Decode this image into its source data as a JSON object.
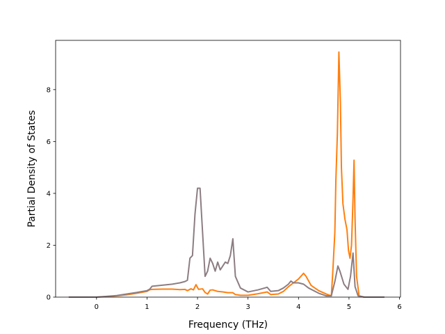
{
  "chart_data": {
    "type": "line",
    "title": "",
    "xlabel": "Frequency (THz)",
    "ylabel": "Partial Density of States",
    "xlim": [
      -0.81,
      6.02
    ],
    "ylim": [
      0,
      9.9
    ],
    "xticks": [
      0,
      1,
      2,
      3,
      4,
      5,
      6
    ],
    "yticks": [
      0,
      2,
      4,
      6,
      8
    ],
    "grid": false,
    "legend": "none",
    "series": [
      {
        "color": "#ff7f0e",
        "points": [
          [
            -0.55,
            0
          ],
          [
            0.0,
            0.0
          ],
          [
            0.2,
            0.02
          ],
          [
            0.4,
            0.05
          ],
          [
            0.6,
            0.09
          ],
          [
            0.8,
            0.15
          ],
          [
            1.0,
            0.22
          ],
          [
            1.05,
            0.28
          ],
          [
            1.1,
            0.3
          ],
          [
            1.3,
            0.31
          ],
          [
            1.5,
            0.31
          ],
          [
            1.65,
            0.29
          ],
          [
            1.75,
            0.3
          ],
          [
            1.8,
            0.25
          ],
          [
            1.87,
            0.32
          ],
          [
            1.92,
            0.28
          ],
          [
            1.97,
            0.48
          ],
          [
            2.02,
            0.3
          ],
          [
            2.1,
            0.32
          ],
          [
            2.15,
            0.18
          ],
          [
            2.2,
            0.12
          ],
          [
            2.25,
            0.27
          ],
          [
            2.3,
            0.28
          ],
          [
            2.4,
            0.22
          ],
          [
            2.5,
            0.2
          ],
          [
            2.6,
            0.17
          ],
          [
            2.7,
            0.17
          ],
          [
            2.75,
            0.1
          ],
          [
            2.85,
            0.07
          ],
          [
            3.0,
            0.07
          ],
          [
            3.2,
            0.13
          ],
          [
            3.38,
            0.2
          ],
          [
            3.45,
            0.1
          ],
          [
            3.6,
            0.12
          ],
          [
            3.7,
            0.22
          ],
          [
            3.8,
            0.4
          ],
          [
            3.9,
            0.55
          ],
          [
            4.0,
            0.7
          ],
          [
            4.07,
            0.85
          ],
          [
            4.1,
            0.92
          ],
          [
            4.15,
            0.8
          ],
          [
            4.25,
            0.45
          ],
          [
            4.4,
            0.25
          ],
          [
            4.55,
            0.12
          ],
          [
            4.65,
            0.05
          ],
          [
            4.68,
            1.0
          ],
          [
            4.72,
            2.5
          ],
          [
            4.74,
            4.5
          ],
          [
            4.77,
            6.3
          ],
          [
            4.8,
            9.45
          ],
          [
            4.83,
            7.5
          ],
          [
            4.85,
            5.0
          ],
          [
            4.88,
            3.6
          ],
          [
            4.92,
            3.0
          ],
          [
            4.96,
            2.6
          ],
          [
            4.99,
            1.8
          ],
          [
            5.02,
            1.5
          ],
          [
            5.05,
            2.0
          ],
          [
            5.08,
            3.8
          ],
          [
            5.1,
            5.28
          ],
          [
            5.12,
            3.0
          ],
          [
            5.15,
            0.8
          ],
          [
            5.2,
            0.05
          ],
          [
            5.3,
            0
          ],
          [
            5.7,
            0
          ]
        ]
      },
      {
        "color": "#8c7d82",
        "points": [
          [
            -0.55,
            0
          ],
          [
            0.0,
            0.0
          ],
          [
            0.2,
            0.03
          ],
          [
            0.4,
            0.06
          ],
          [
            0.6,
            0.12
          ],
          [
            0.8,
            0.18
          ],
          [
            1.0,
            0.25
          ],
          [
            1.05,
            0.3
          ],
          [
            1.1,
            0.42
          ],
          [
            1.3,
            0.46
          ],
          [
            1.5,
            0.5
          ],
          [
            1.65,
            0.55
          ],
          [
            1.75,
            0.6
          ],
          [
            1.8,
            0.65
          ],
          [
            1.85,
            1.5
          ],
          [
            1.9,
            1.6
          ],
          [
            1.95,
            3.2
          ],
          [
            2.0,
            4.2
          ],
          [
            2.05,
            4.2
          ],
          [
            2.1,
            2.5
          ],
          [
            2.15,
            0.8
          ],
          [
            2.2,
            1.0
          ],
          [
            2.25,
            1.5
          ],
          [
            2.3,
            1.3
          ],
          [
            2.35,
            1.0
          ],
          [
            2.4,
            1.35
          ],
          [
            2.45,
            1.05
          ],
          [
            2.5,
            1.2
          ],
          [
            2.55,
            1.35
          ],
          [
            2.6,
            1.3
          ],
          [
            2.65,
            1.6
          ],
          [
            2.7,
            2.25
          ],
          [
            2.75,
            0.8
          ],
          [
            2.85,
            0.35
          ],
          [
            3.0,
            0.2
          ],
          [
            3.2,
            0.28
          ],
          [
            3.38,
            0.38
          ],
          [
            3.45,
            0.22
          ],
          [
            3.6,
            0.25
          ],
          [
            3.7,
            0.35
          ],
          [
            3.8,
            0.5
          ],
          [
            3.85,
            0.62
          ],
          [
            3.9,
            0.55
          ],
          [
            4.0,
            0.55
          ],
          [
            4.1,
            0.5
          ],
          [
            4.2,
            0.35
          ],
          [
            4.4,
            0.15
          ],
          [
            4.55,
            0.05
          ],
          [
            4.65,
            0.05
          ],
          [
            4.72,
            0.6
          ],
          [
            4.78,
            1.2
          ],
          [
            4.82,
            1.0
          ],
          [
            4.9,
            0.5
          ],
          [
            4.98,
            0.3
          ],
          [
            5.03,
            0.8
          ],
          [
            5.08,
            1.7
          ],
          [
            5.12,
            0.4
          ],
          [
            5.18,
            0.05
          ],
          [
            5.3,
            0
          ],
          [
            5.7,
            0
          ]
        ]
      }
    ]
  }
}
